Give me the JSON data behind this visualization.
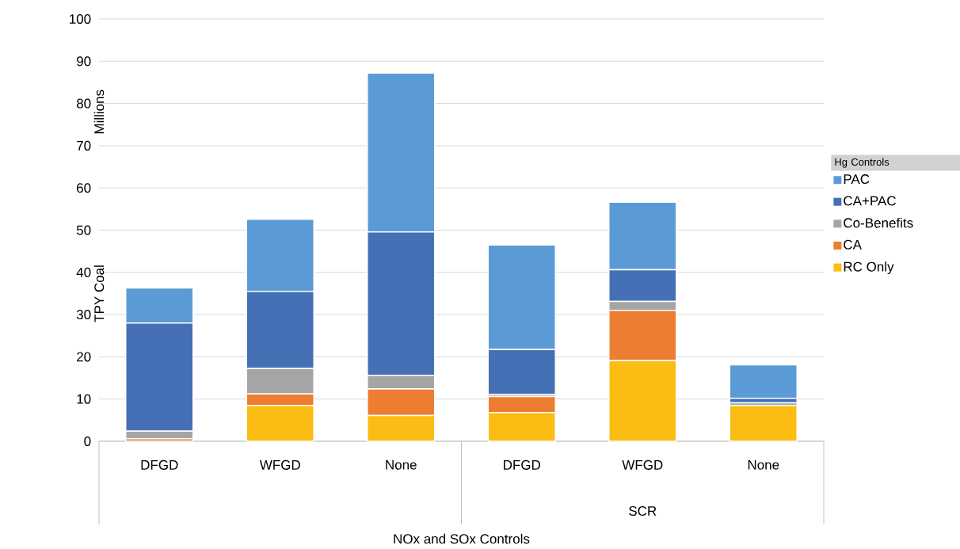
{
  "chart_data": {
    "type": "bar",
    "stacked": true,
    "xlabel": "NOx and SOx Controls",
    "ylabel": "TPY Coal",
    "legend_title": "Hg Controls",
    "legend": "right",
    "grid": "y",
    "annotations": [
      "Millions",
      "SCR"
    ],
    "categories": [
      "DFGD",
      "WFGD",
      "None",
      "DFGD",
      "WFGD",
      "None"
    ],
    "ylim": [
      0,
      100
    ],
    "yticks": [
      0,
      10,
      20,
      30,
      40,
      50,
      60,
      70,
      80,
      90,
      100
    ],
    "series": [
      {
        "name": "RC Only",
        "color": "#fbbd14",
        "values": [
          0,
          8.5,
          6.1,
          6.8,
          19.1,
          8.5
        ]
      },
      {
        "name": "CA",
        "color": "#ed7d31",
        "values": [
          0.6,
          2.7,
          6.3,
          3.8,
          11.9,
          0
        ]
      },
      {
        "name": "Co-Benefits",
        "color": "#a5a5a5",
        "values": [
          1.8,
          6.0,
          3.2,
          0.5,
          2.1,
          0.6
        ]
      },
      {
        "name": "CA+PAC",
        "color": "#4670b6",
        "values": [
          25.6,
          18.3,
          34.0,
          10.6,
          7.5,
          1.1
        ]
      },
      {
        "name": "PAC",
        "color": "#5b9bd5",
        "values": [
          8.3,
          17.1,
          37.6,
          24.8,
          16.0,
          7.9
        ]
      }
    ]
  }
}
